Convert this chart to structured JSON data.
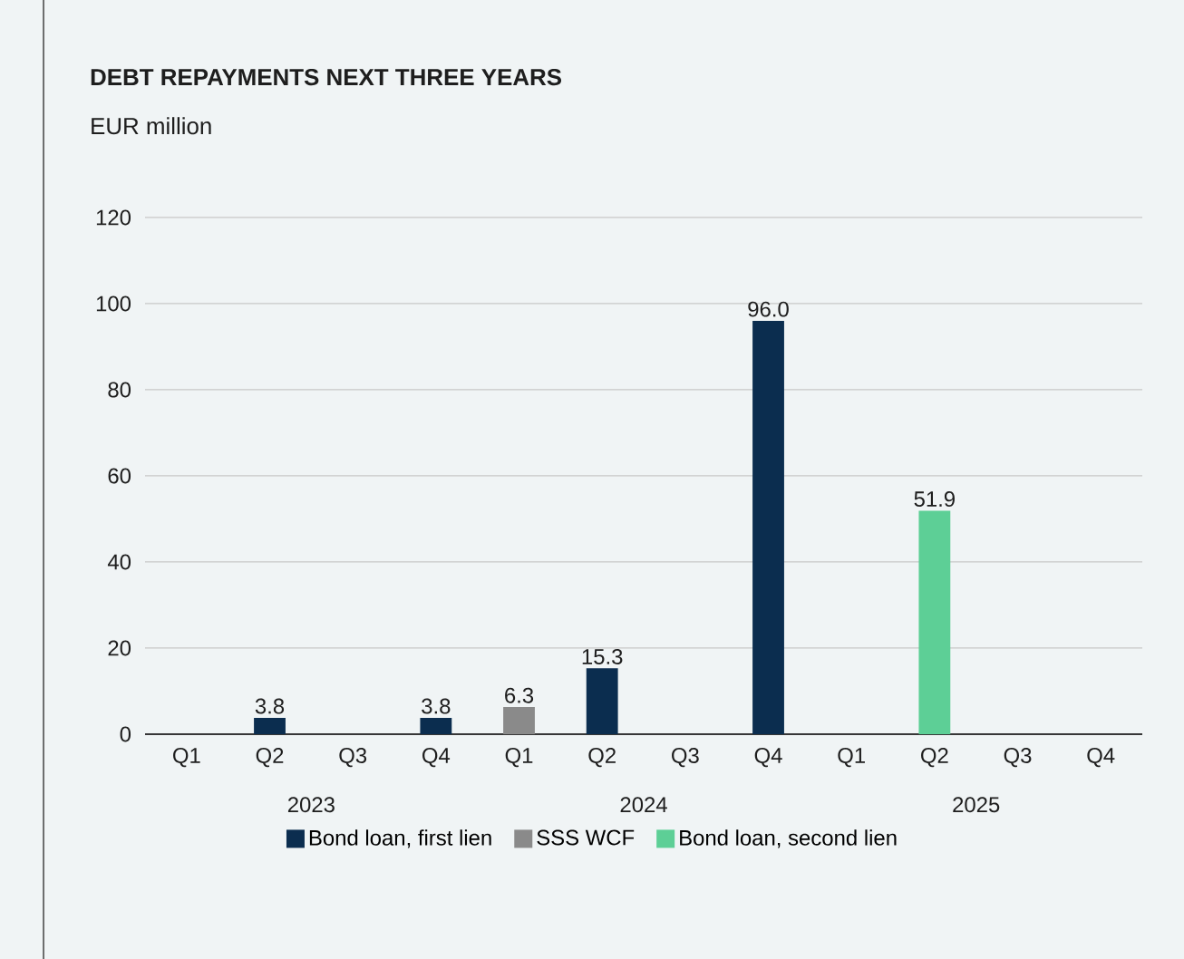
{
  "chart_data": {
    "type": "bar",
    "title": "DEBT REPAYMENTS NEXT THREE YEARS",
    "subtitle": "EUR million",
    "categories": [
      "Q1",
      "Q2",
      "Q3",
      "Q4",
      "Q1",
      "Q2",
      "Q3",
      "Q4",
      "Q1",
      "Q2",
      "Q3",
      "Q4"
    ],
    "annotations": [
      "2023",
      "2024",
      "2025"
    ],
    "series": [
      {
        "name": "Bond loan, first lien",
        "color": "#0b2d4f",
        "values": [
          null,
          3.8,
          null,
          3.8,
          null,
          15.3,
          null,
          96.0,
          null,
          null,
          null,
          null
        ],
        "value_labels": [
          null,
          "3.8",
          null,
          "3.8",
          null,
          "15.3",
          null,
          "96.0",
          null,
          null,
          null,
          null
        ]
      },
      {
        "name": "SSS WCF",
        "color": "#8a8a8a",
        "values": [
          null,
          null,
          null,
          null,
          6.3,
          null,
          null,
          null,
          null,
          null,
          null,
          null
        ],
        "value_labels": [
          null,
          null,
          null,
          null,
          "6.3",
          null,
          null,
          null,
          null,
          null,
          null,
          null
        ]
      },
      {
        "name": "Bond loan, second lien",
        "color": "#5dcf96",
        "values": [
          null,
          null,
          null,
          null,
          null,
          null,
          null,
          null,
          null,
          51.9,
          null,
          null
        ],
        "value_labels": [
          null,
          null,
          null,
          null,
          null,
          null,
          null,
          null,
          null,
          "51.9",
          null,
          null
        ]
      }
    ],
    "ylim": [
      0,
      120
    ],
    "yticks": [
      0,
      20,
      40,
      60,
      80,
      100,
      120
    ],
    "grid": "y",
    "legend": "bottom"
  }
}
